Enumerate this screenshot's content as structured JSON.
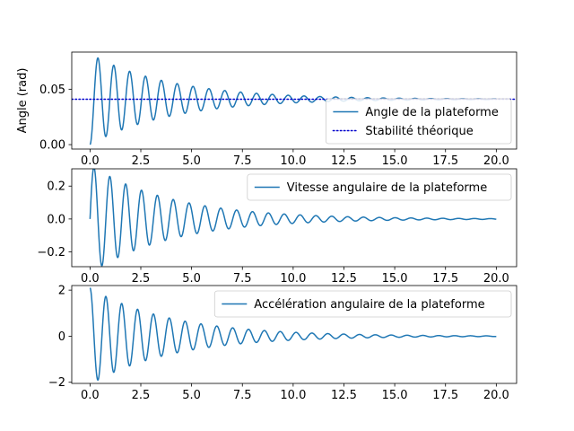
{
  "chart_data": [
    {
      "type": "line",
      "ylabel": "Angle (rad)",
      "xlim": [
        -0.9,
        21.0
      ],
      "ylim": [
        -0.004,
        0.0835
      ],
      "x_ticks": [
        0,
        2.5,
        5,
        7.5,
        10,
        12.5,
        15,
        17.5,
        20
      ],
      "x_tick_labels": [
        "0.0",
        "2.5",
        "5.0",
        "7.5",
        "10.0",
        "12.5",
        "15.0",
        "17.5",
        "20.0"
      ],
      "y_ticks": [
        0,
        0.05
      ],
      "y_tick_labels": [
        "0.00",
        "0.05"
      ],
      "legend_position": "lower-right",
      "series": [
        {
          "name": "Angle de la plateforme",
          "color": "#1f77b4",
          "style": "solid",
          "model": "damped_step",
          "params": {
            "offset": 0.041,
            "amplitude": 0.041,
            "damping": 0.25,
            "omega": 8.05,
            "x_start": 0,
            "x_end": 20
          }
        },
        {
          "name": "Stabilité théorique",
          "color": "#0000cc",
          "style": "dotted",
          "model": "constant",
          "params": {
            "value": 0.041,
            "x_start": -0.9,
            "x_end": 21.0
          }
        }
      ]
    },
    {
      "type": "line",
      "ylabel": "",
      "xlim": [
        -0.9,
        21.0
      ],
      "ylim": [
        -0.29,
        0.305
      ],
      "x_ticks": [
        0,
        2.5,
        5,
        7.5,
        10,
        12.5,
        15,
        17.5,
        20
      ],
      "x_tick_labels": [
        "0.0",
        "2.5",
        "5.0",
        "7.5",
        "10.0",
        "12.5",
        "15.0",
        "17.5",
        "20.0"
      ],
      "y_ticks": [
        -0.2,
        0,
        0.2
      ],
      "y_tick_labels": [
        "−0.2",
        "0.0",
        "0.2"
      ],
      "legend_position": "upper-right",
      "series": [
        {
          "name": "Vitesse angulaire de la plateforme",
          "color": "#1f77b4",
          "style": "solid",
          "model": "damped_sine",
          "params": {
            "amplitude": 0.33,
            "damping": 0.25,
            "omega": 8.05,
            "x_start": 0,
            "x_end": 20
          }
        }
      ]
    },
    {
      "type": "line",
      "ylabel": "",
      "xlim": [
        -0.9,
        21.0
      ],
      "ylim": [
        -2.05,
        2.2
      ],
      "x_ticks": [
        0,
        2.5,
        5,
        7.5,
        10,
        12.5,
        15,
        17.5,
        20
      ],
      "x_tick_labels": [
        "0.0",
        "2.5",
        "5.0",
        "7.5",
        "10.0",
        "12.5",
        "15.0",
        "17.5",
        "20.0"
      ],
      "y_ticks": [
        -2,
        0,
        2
      ],
      "y_tick_labels": [
        "−2",
        "0",
        "2"
      ],
      "legend_position": "upper-right",
      "series": [
        {
          "name": "Accélération angulaire de la plateforme",
          "color": "#1f77b4",
          "style": "solid",
          "model": "damped_cosine",
          "params": {
            "amplitude": 2.1,
            "damping": 0.25,
            "omega": 8.05,
            "x_start": 0,
            "x_end": 20
          }
        }
      ]
    }
  ]
}
